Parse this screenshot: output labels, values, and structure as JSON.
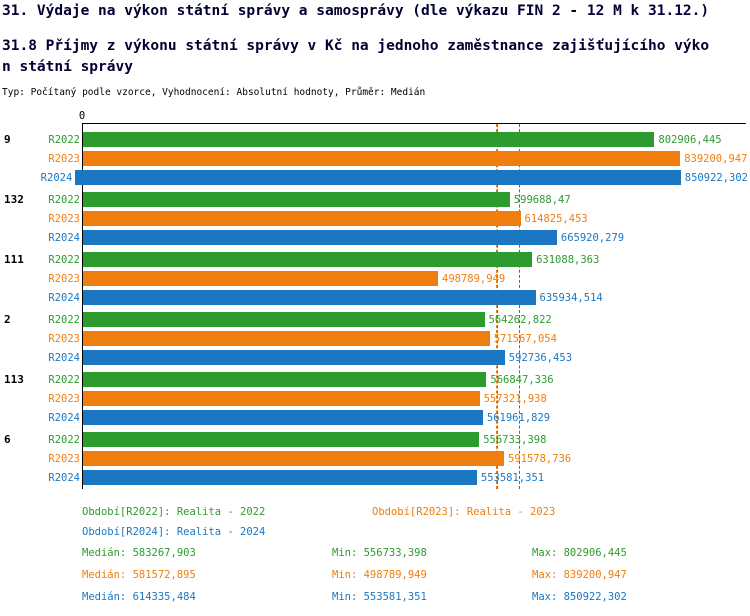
{
  "title": "31. Výdaje na výkon státní správy a samosprávy (dle výkazu FIN 2 - 12 M k 31.12.)",
  "subtitle": "31.8 Příjmy z výkonu státní správy v Kč na jednoho zaměstnance zajišťujícího výkon státní správy",
  "meta": "Typ: Počítaný podle vzorce, Vyhodnocení: Absolutní hodnoty, Průměr: Medián",
  "colors": {
    "R2022": "#2e9b2e",
    "R2023": "#f07e0e",
    "R2024": "#1b77c2"
  },
  "chart_data": {
    "type": "bar",
    "orientation": "horizontal",
    "x_origin_label": "0",
    "xlim": [
      0,
      860000
    ],
    "grid": false,
    "categories": [
      "9",
      "132",
      "111",
      "2",
      "113",
      "6"
    ],
    "series": [
      {
        "name": "R2022",
        "values": [
          802906.445,
          599688.47,
          631088.363,
          564262.822,
          566847.336,
          556733.398
        ],
        "labels": [
          "802906,445",
          "599688,47",
          "631088,363",
          "564262,822",
          "566847,336",
          "556733,398"
        ],
        "median": 583267.903,
        "median_label": "583267,903"
      },
      {
        "name": "R2023",
        "values": [
          839200.947,
          614825.453,
          498789.949,
          571567.054,
          557321.938,
          591578.736
        ],
        "labels": [
          "839200,947",
          "614825,453",
          "498789,949",
          "571567,054",
          "557321,938",
          "591578,736"
        ],
        "median": 581572.895,
        "median_label": "581572,895"
      },
      {
        "name": "R2024",
        "values": [
          850922.302,
          665920.279,
          635934.514,
          592736.453,
          561961.829,
          553581.351
        ],
        "labels": [
          "850922,302",
          "665920,279",
          "635934,514",
          "592736,453",
          "561961,829",
          "553581,351"
        ],
        "median": 614335.484,
        "median_label": "614335,484"
      }
    ]
  },
  "legend": [
    {
      "series": "R2022",
      "label": "Období[R2022]: Realita - 2022"
    },
    {
      "series": "R2023",
      "label": "Období[R2023]: Realita - 2023"
    },
    {
      "series": "R2024",
      "label": "Období[R2024]: Realita - 2024"
    }
  ],
  "stats": [
    {
      "series": "R2022",
      "median": "Medián: 583267,903",
      "min": "Min: 556733,398",
      "max": "Max: 802906,445"
    },
    {
      "series": "R2023",
      "median": "Medián: 581572,895",
      "min": "Min: 498789,949",
      "max": "Max: 839200,947"
    },
    {
      "series": "R2024",
      "median": "Medián: 614335,484",
      "min": "Min: 553581,351",
      "max": "Max: 850922,302"
    }
  ]
}
